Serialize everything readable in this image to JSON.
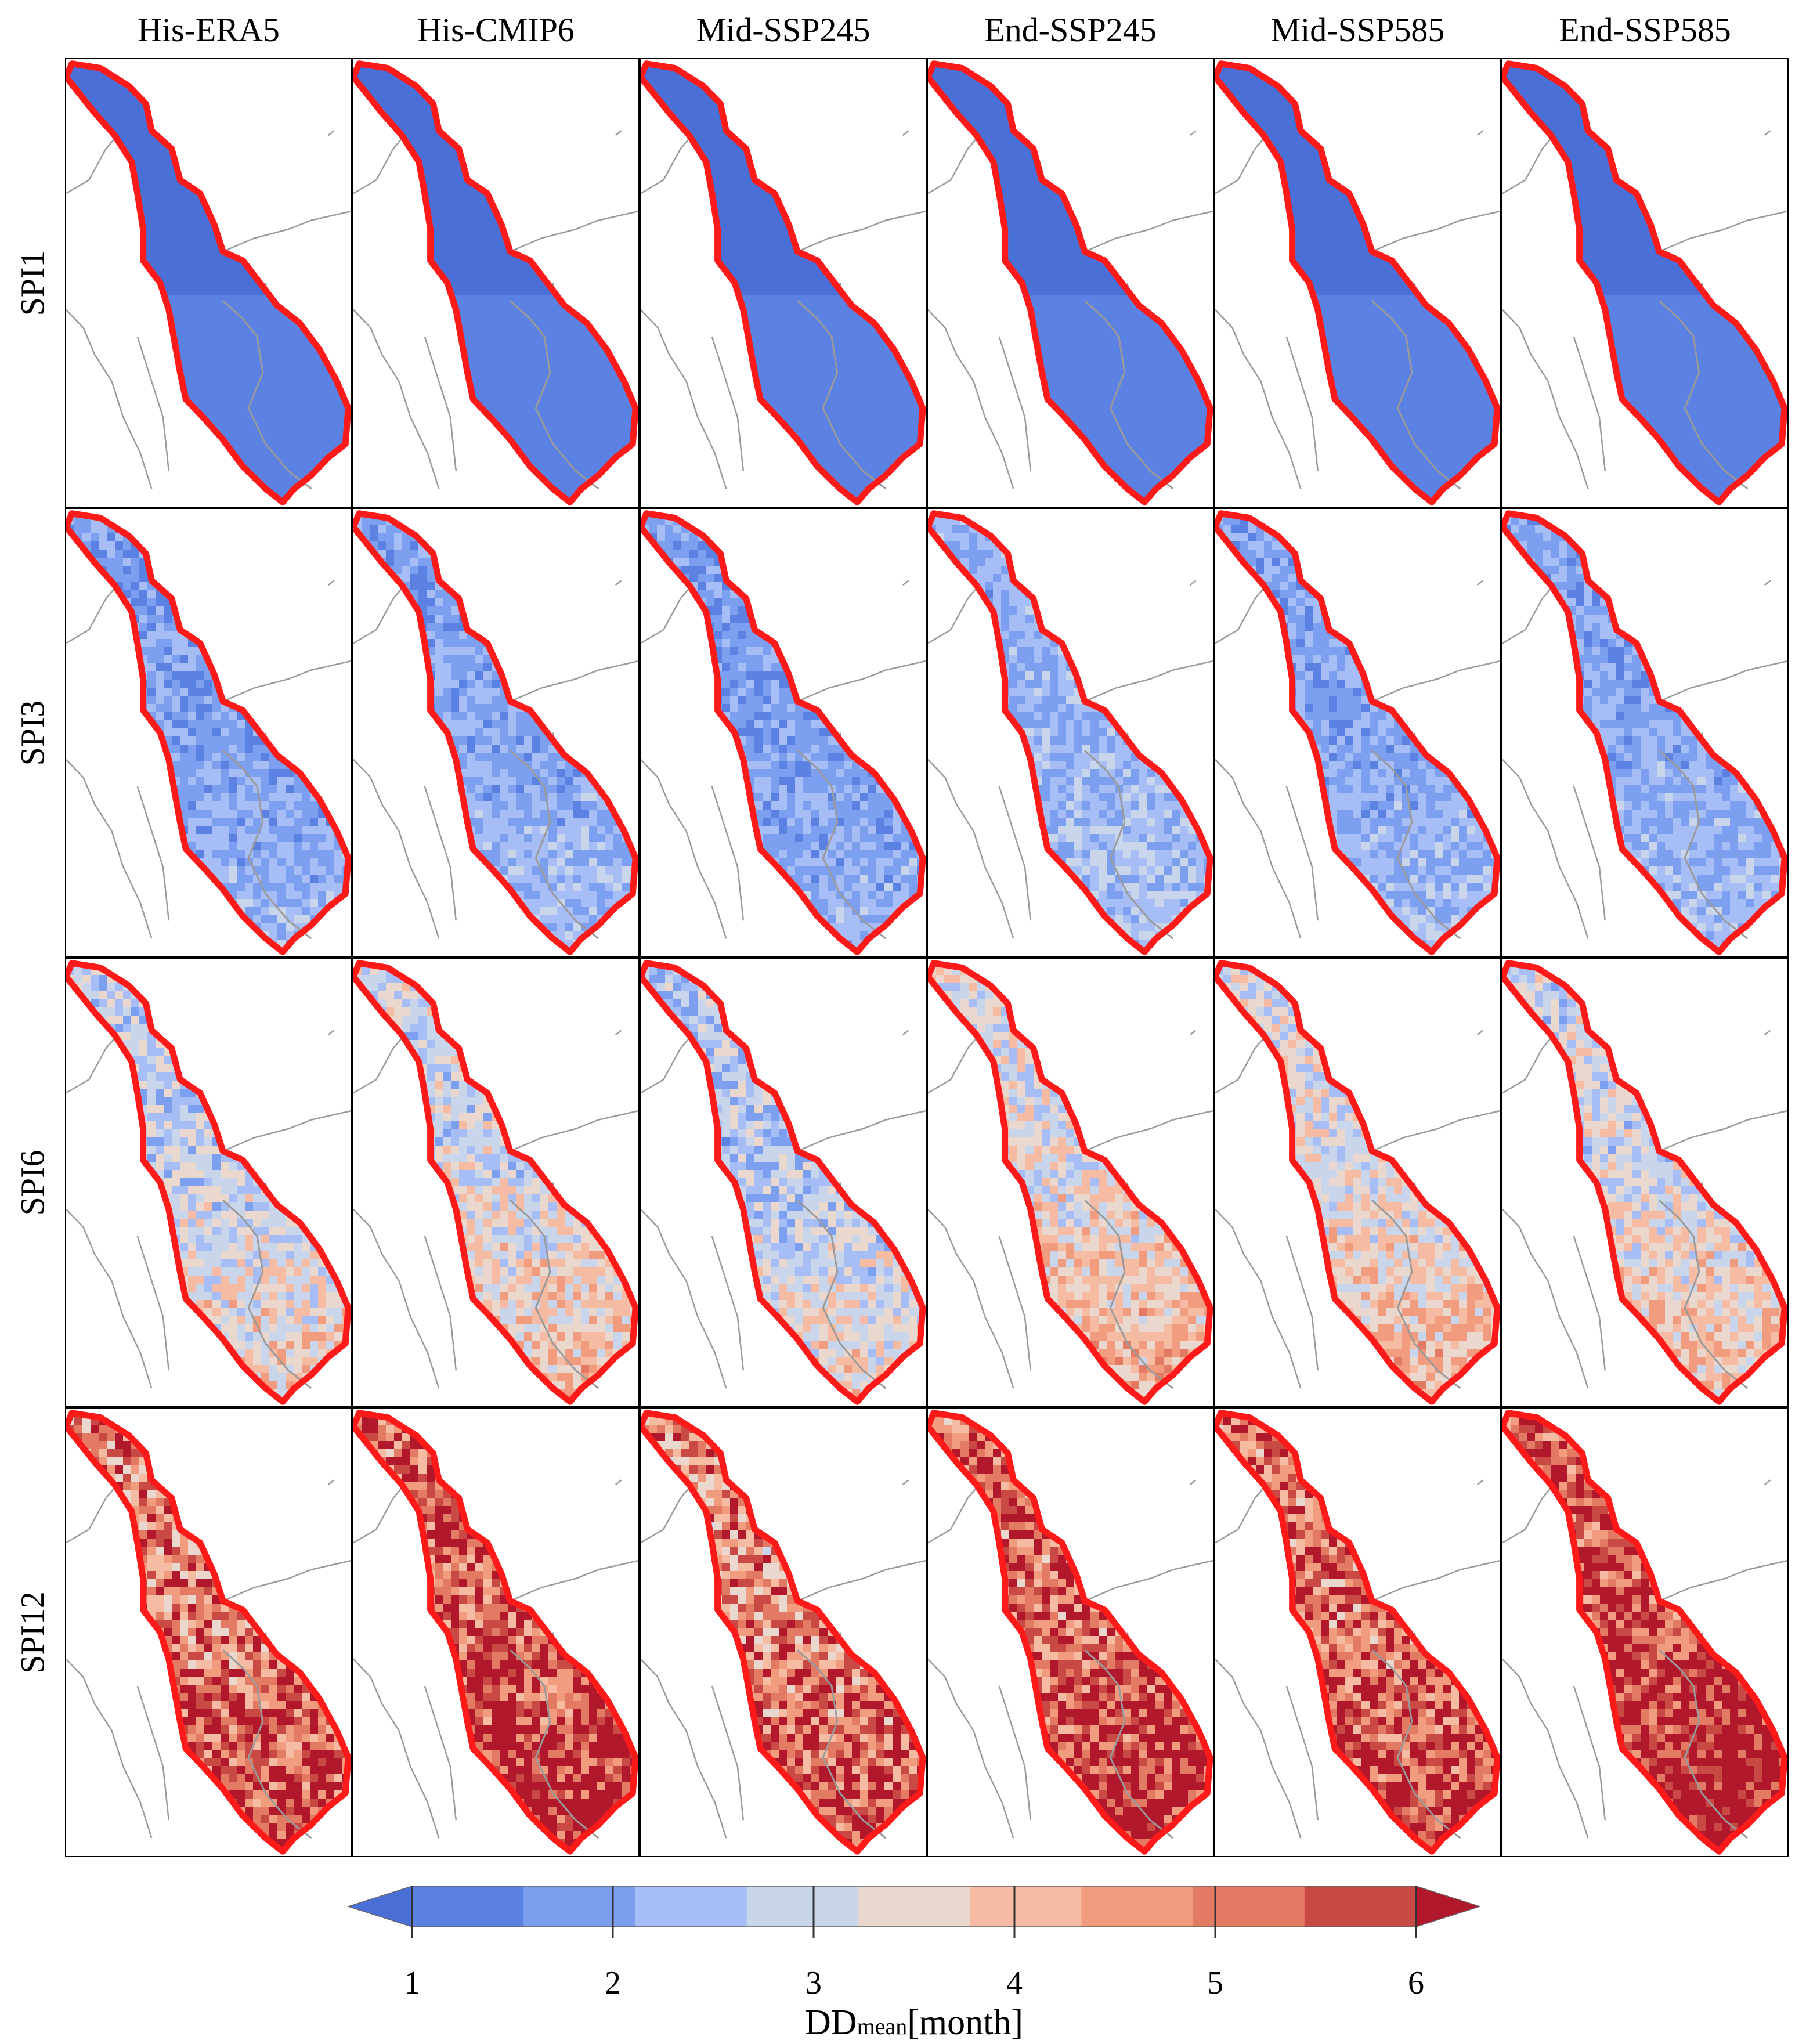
{
  "columns": [
    "His-ERA5",
    "His-CMIP6",
    "Mid-SSP245",
    "End-SSP245",
    "Mid-SSP585",
    "End-SSP585"
  ],
  "rows": [
    "SPI1",
    "SPI3",
    "SPI6",
    "SPI12"
  ],
  "panel_intensity": [
    [
      0.08,
      0.08,
      0.08,
      0.08,
      0.08,
      0.08
    ],
    [
      0.22,
      0.24,
      0.22,
      0.28,
      0.24,
      0.25
    ],
    [
      0.38,
      0.42,
      0.34,
      0.46,
      0.44,
      0.42
    ],
    [
      0.74,
      0.8,
      0.7,
      0.78,
      0.76,
      0.86
    ]
  ],
  "colorbar": {
    "min": 1,
    "max": 6,
    "ticks": [
      "1",
      "2",
      "3",
      "4",
      "5",
      "6"
    ],
    "colors": [
      "#4a6fd6",
      "#5b82e3",
      "#7d9ff0",
      "#a6bef5",
      "#c8d5ea",
      "#ead8cf",
      "#f5bba3",
      "#f19c7f",
      "#e37a63",
      "#c94a45",
      "#b2182b"
    ],
    "label_main": "DD",
    "label_sub": "mean",
    "label_unit": "[month]"
  },
  "styles": {
    "basin_outline": "#ff1a1a",
    "borders": "#9a9a9a"
  }
}
